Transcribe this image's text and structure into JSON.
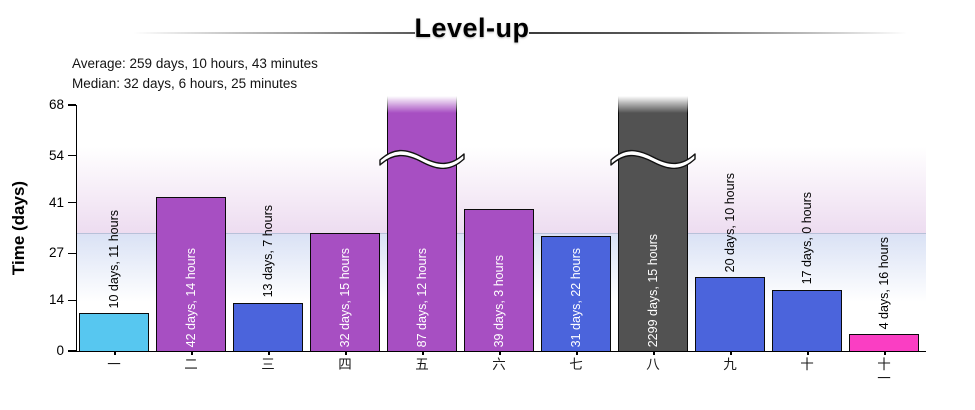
{
  "header": {
    "title": "Level-up",
    "average_line": "Average: 259 days, 10 hours, 43 minutes",
    "median_line": "Median: 32 days, 6 hours, 25 minutes"
  },
  "chart_data": {
    "type": "bar",
    "title": "Level-up",
    "xlabel": "",
    "ylabel": "Time (days)",
    "ylim": [
      0,
      68
    ],
    "yticks": [
      0,
      14,
      27,
      41,
      54,
      68
    ],
    "grid": false,
    "legend_position": "none",
    "median_marker_days": 32.27,
    "axis_break": "bars exceeding y-axis max are clipped with a white wavy break mark and fade out at the top",
    "categories": [
      "一",
      "二",
      "三",
      "四",
      "五",
      "六",
      "七",
      "八",
      "九",
      "十",
      "十一"
    ],
    "series": [
      {
        "name": "time-to-level-up",
        "points": [
          {
            "category": "一",
            "label": "10 days, 11 hours",
            "days": 10.46,
            "color": "#57c7f0",
            "exceeds_axis": false,
            "label_position": "above"
          },
          {
            "category": "二",
            "label": "42 days, 14 hours",
            "days": 42.58,
            "color": "#a74fc2",
            "exceeds_axis": false,
            "label_position": "inside"
          },
          {
            "category": "三",
            "label": "13 days, 7 hours",
            "days": 13.29,
            "color": "#4b64dc",
            "exceeds_axis": false,
            "label_position": "above"
          },
          {
            "category": "四",
            "label": "32 days, 15 hours",
            "days": 32.63,
            "color": "#a74fc2",
            "exceeds_axis": false,
            "label_position": "inside"
          },
          {
            "category": "五",
            "label": "87 days, 12 hours",
            "days": 87.5,
            "color": "#a74fc2",
            "exceeds_axis": true,
            "label_position": "inside"
          },
          {
            "category": "六",
            "label": "39 days, 3 hours",
            "days": 39.13,
            "color": "#a74fc2",
            "exceeds_axis": false,
            "label_position": "inside"
          },
          {
            "category": "七",
            "label": "31 days, 22 hours",
            "days": 31.92,
            "color": "#4b64dc",
            "exceeds_axis": false,
            "label_position": "inside"
          },
          {
            "category": "八",
            "label": "2299 days, 15 hours",
            "days": 2299.63,
            "color": "#525252",
            "exceeds_axis": true,
            "label_position": "inside"
          },
          {
            "category": "九",
            "label": "20 days, 10 hours",
            "days": 20.42,
            "color": "#4b64dc",
            "exceeds_axis": false,
            "label_position": "above"
          },
          {
            "category": "十",
            "label": "17 days, 0 hours",
            "days": 17.0,
            "color": "#4b64dc",
            "exceeds_axis": false,
            "label_position": "above"
          },
          {
            "category": "十一",
            "label": "4 days, 16 hours",
            "days": 4.67,
            "color": "#fa3ec3",
            "exceeds_axis": false,
            "label_position": "above"
          }
        ]
      }
    ],
    "colors": {
      "median_line": "#b7c1d9",
      "band_above_median": "#eddcf0",
      "band_below_median": "#dae2f5",
      "axis": "#000000",
      "bar_outline": "#0a0a0a"
    }
  }
}
